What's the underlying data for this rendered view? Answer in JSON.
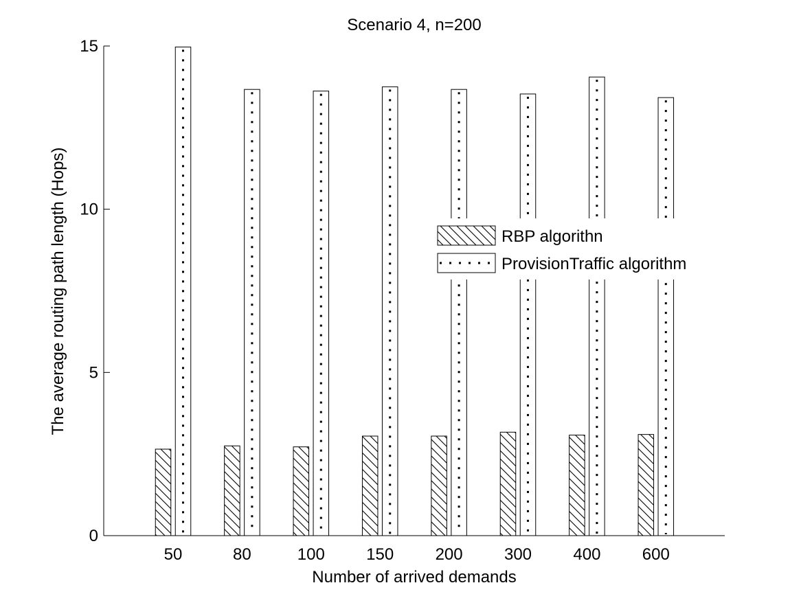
{
  "chart_data": {
    "type": "bar",
    "title": "Scenario 4, n=200",
    "xlabel": "Number of arrived demands",
    "ylabel": "The average routing path length (Hops)",
    "categories": [
      "50",
      "80",
      "100",
      "150",
      "200",
      "300",
      "400",
      "600"
    ],
    "ylim": [
      0,
      15
    ],
    "yticks": [
      0,
      5,
      10,
      15
    ],
    "grid": false,
    "legend_position": "center-right",
    "series": [
      {
        "name": "RBP algorithn",
        "pattern": "diagonal-hatch",
        "values": [
          2.65,
          2.75,
          2.72,
          3.05,
          3.05,
          3.17,
          3.08,
          3.1
        ]
      },
      {
        "name": "ProvisionTraffic algorithm",
        "pattern": "dotted",
        "values": [
          14.97,
          13.67,
          13.62,
          13.75,
          13.67,
          13.53,
          14.05,
          13.42
        ]
      }
    ],
    "colors": {
      "stroke": "#000000",
      "fill": "#ffffff"
    }
  }
}
